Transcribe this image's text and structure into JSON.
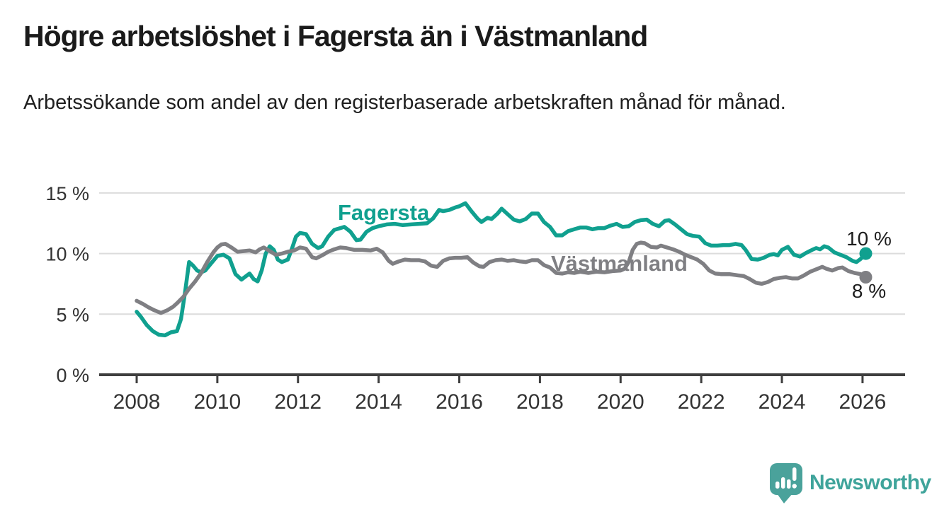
{
  "header": {
    "title": "Högre arbetslöshet i Fagersta än i Västmanland",
    "subtitle": "Arbetssökande som andel av den registerbaserade arbetskraften månad för månad."
  },
  "branding": {
    "logo_text": "Newsworthy",
    "logo_icon": "bar-chart-speech-bubble-icon",
    "logo_color": "#4aa29b"
  },
  "chart_data": {
    "type": "line",
    "unit": "%",
    "title": "Högre arbetslöshet i Fagersta än i Västmanland",
    "subtitle": "Arbetssökande som andel av den registerbaserade arbetskraften månad för månad.",
    "legend_position": "inline-labels",
    "grid": "horizontal",
    "style": {
      "gridline_color": "#dcdcdc",
      "axis_color": "#3e3e3e",
      "axis_text_color": "#333333"
    },
    "x_axis": {
      "min": 2007.1,
      "max": 2027.1,
      "ticks": [
        {
          "value": 2008,
          "label": "2008"
        },
        {
          "value": 2010,
          "label": "2010"
        },
        {
          "value": 2012,
          "label": "2012"
        },
        {
          "value": 2014,
          "label": "2014"
        },
        {
          "value": 2016,
          "label": "2016"
        },
        {
          "value": 2018,
          "label": "2018"
        },
        {
          "value": 2020,
          "label": "2020"
        },
        {
          "value": 2022,
          "label": "2022"
        },
        {
          "value": 2024,
          "label": "2024"
        },
        {
          "value": 2026,
          "label": "2026"
        }
      ]
    },
    "y_axis": {
      "min": 0,
      "max": 15,
      "ticks": [
        {
          "value": 0,
          "label": "0 %"
        },
        {
          "value": 5,
          "label": "5 %"
        },
        {
          "value": 10,
          "label": "10 %"
        },
        {
          "value": 15,
          "label": "15 %"
        }
      ]
    },
    "series": [
      {
        "id": "fagersta",
        "name": "Fagersta",
        "color": "#10a08f",
        "end_label": "10 %",
        "end_value": 10,
        "points": [
          [
            2008.0,
            5.2
          ],
          [
            2008.1,
            4.8
          ],
          [
            2008.25,
            4.1
          ],
          [
            2008.4,
            3.6
          ],
          [
            2008.55,
            3.3
          ],
          [
            2008.7,
            3.25
          ],
          [
            2008.85,
            3.5
          ],
          [
            2009.0,
            3.6
          ],
          [
            2009.1,
            4.6
          ],
          [
            2009.2,
            6.8
          ],
          [
            2009.3,
            9.3
          ],
          [
            2009.4,
            9.0
          ],
          [
            2009.5,
            8.6
          ],
          [
            2009.6,
            8.45
          ],
          [
            2009.7,
            8.6
          ],
          [
            2009.85,
            9.2
          ],
          [
            2010.0,
            9.8
          ],
          [
            2010.15,
            9.9
          ],
          [
            2010.3,
            9.6
          ],
          [
            2010.45,
            8.3
          ],
          [
            2010.6,
            7.85
          ],
          [
            2010.7,
            8.1
          ],
          [
            2010.8,
            8.35
          ],
          [
            2010.9,
            7.9
          ],
          [
            2011.0,
            7.7
          ],
          [
            2011.1,
            8.6
          ],
          [
            2011.2,
            10.0
          ],
          [
            2011.3,
            10.6
          ],
          [
            2011.4,
            10.3
          ],
          [
            2011.5,
            9.5
          ],
          [
            2011.6,
            9.3
          ],
          [
            2011.75,
            9.5
          ],
          [
            2011.85,
            10.4
          ],
          [
            2011.95,
            11.4
          ],
          [
            2012.05,
            11.7
          ],
          [
            2012.2,
            11.6
          ],
          [
            2012.35,
            10.8
          ],
          [
            2012.5,
            10.45
          ],
          [
            2012.6,
            10.6
          ],
          [
            2012.75,
            11.4
          ],
          [
            2012.9,
            11.95
          ],
          [
            2013.05,
            12.1
          ],
          [
            2013.15,
            12.2
          ],
          [
            2013.3,
            11.8
          ],
          [
            2013.45,
            11.1
          ],
          [
            2013.55,
            11.15
          ],
          [
            2013.7,
            11.8
          ],
          [
            2013.85,
            12.1
          ],
          [
            2014.0,
            12.25
          ],
          [
            2014.2,
            12.4
          ],
          [
            2014.4,
            12.45
          ],
          [
            2014.6,
            12.35
          ],
          [
            2014.8,
            12.4
          ],
          [
            2015.0,
            12.45
          ],
          [
            2015.2,
            12.5
          ],
          [
            2015.35,
            12.9
          ],
          [
            2015.5,
            13.6
          ],
          [
            2015.6,
            13.5
          ],
          [
            2015.75,
            13.6
          ],
          [
            2015.9,
            13.8
          ],
          [
            2016.0,
            13.9
          ],
          [
            2016.15,
            14.15
          ],
          [
            2016.3,
            13.5
          ],
          [
            2016.45,
            12.9
          ],
          [
            2016.55,
            12.6
          ],
          [
            2016.7,
            12.95
          ],
          [
            2016.8,
            12.85
          ],
          [
            2016.95,
            13.3
          ],
          [
            2017.05,
            13.7
          ],
          [
            2017.2,
            13.25
          ],
          [
            2017.35,
            12.8
          ],
          [
            2017.5,
            12.65
          ],
          [
            2017.65,
            12.85
          ],
          [
            2017.8,
            13.3
          ],
          [
            2017.95,
            13.3
          ],
          [
            2018.1,
            12.6
          ],
          [
            2018.25,
            12.2
          ],
          [
            2018.4,
            11.5
          ],
          [
            2018.55,
            11.5
          ],
          [
            2018.7,
            11.85
          ],
          [
            2018.85,
            12.0
          ],
          [
            2019.0,
            12.15
          ],
          [
            2019.15,
            12.15
          ],
          [
            2019.3,
            12.0
          ],
          [
            2019.45,
            12.1
          ],
          [
            2019.6,
            12.1
          ],
          [
            2019.75,
            12.3
          ],
          [
            2019.9,
            12.45
          ],
          [
            2020.05,
            12.2
          ],
          [
            2020.2,
            12.25
          ],
          [
            2020.35,
            12.6
          ],
          [
            2020.5,
            12.75
          ],
          [
            2020.65,
            12.8
          ],
          [
            2020.8,
            12.45
          ],
          [
            2020.95,
            12.25
          ],
          [
            2021.1,
            12.7
          ],
          [
            2021.2,
            12.75
          ],
          [
            2021.35,
            12.4
          ],
          [
            2021.5,
            12.0
          ],
          [
            2021.65,
            11.6
          ],
          [
            2021.8,
            11.45
          ],
          [
            2021.95,
            11.4
          ],
          [
            2022.1,
            10.85
          ],
          [
            2022.25,
            10.65
          ],
          [
            2022.4,
            10.65
          ],
          [
            2022.55,
            10.7
          ],
          [
            2022.7,
            10.7
          ],
          [
            2022.85,
            10.8
          ],
          [
            2023.0,
            10.7
          ],
          [
            2023.1,
            10.3
          ],
          [
            2023.25,
            9.55
          ],
          [
            2023.4,
            9.5
          ],
          [
            2023.55,
            9.65
          ],
          [
            2023.7,
            9.9
          ],
          [
            2023.8,
            9.95
          ],
          [
            2023.9,
            9.85
          ],
          [
            2024.0,
            10.3
          ],
          [
            2024.15,
            10.55
          ],
          [
            2024.3,
            9.9
          ],
          [
            2024.45,
            9.75
          ],
          [
            2024.6,
            10.05
          ],
          [
            2024.75,
            10.3
          ],
          [
            2024.85,
            10.45
          ],
          [
            2024.95,
            10.35
          ],
          [
            2025.05,
            10.6
          ],
          [
            2025.15,
            10.5
          ],
          [
            2025.3,
            10.1
          ],
          [
            2025.45,
            9.9
          ],
          [
            2025.6,
            9.7
          ],
          [
            2025.75,
            9.4
          ],
          [
            2025.85,
            9.3
          ],
          [
            2025.95,
            9.55
          ],
          [
            2026.08,
            10.0
          ]
        ]
      },
      {
        "id": "vastmanland",
        "name": "Västmanland",
        "color": "#7f7f83",
        "end_label": "8 %",
        "end_value": 8,
        "points": [
          [
            2008.0,
            6.1
          ],
          [
            2008.15,
            5.85
          ],
          [
            2008.3,
            5.55
          ],
          [
            2008.45,
            5.3
          ],
          [
            2008.6,
            5.1
          ],
          [
            2008.75,
            5.3
          ],
          [
            2008.9,
            5.6
          ],
          [
            2009.0,
            5.9
          ],
          [
            2009.15,
            6.4
          ],
          [
            2009.3,
            7.1
          ],
          [
            2009.45,
            7.7
          ],
          [
            2009.6,
            8.4
          ],
          [
            2009.75,
            9.3
          ],
          [
            2009.9,
            10.1
          ],
          [
            2010.0,
            10.5
          ],
          [
            2010.1,
            10.75
          ],
          [
            2010.2,
            10.8
          ],
          [
            2010.35,
            10.5
          ],
          [
            2010.5,
            10.15
          ],
          [
            2010.65,
            10.2
          ],
          [
            2010.8,
            10.25
          ],
          [
            2010.95,
            10.1
          ],
          [
            2011.05,
            10.35
          ],
          [
            2011.15,
            10.5
          ],
          [
            2011.3,
            10.2
          ],
          [
            2011.45,
            9.9
          ],
          [
            2011.6,
            10.0
          ],
          [
            2011.75,
            10.15
          ],
          [
            2011.9,
            10.25
          ],
          [
            2012.05,
            10.5
          ],
          [
            2012.2,
            10.4
          ],
          [
            2012.35,
            9.7
          ],
          [
            2012.45,
            9.6
          ],
          [
            2012.6,
            9.85
          ],
          [
            2012.75,
            10.15
          ],
          [
            2012.9,
            10.35
          ],
          [
            2013.05,
            10.5
          ],
          [
            2013.2,
            10.45
          ],
          [
            2013.4,
            10.3
          ],
          [
            2013.6,
            10.3
          ],
          [
            2013.8,
            10.25
          ],
          [
            2013.95,
            10.4
          ],
          [
            2014.1,
            10.1
          ],
          [
            2014.25,
            9.4
          ],
          [
            2014.35,
            9.15
          ],
          [
            2014.5,
            9.35
          ],
          [
            2014.65,
            9.5
          ],
          [
            2014.8,
            9.45
          ],
          [
            2015.0,
            9.45
          ],
          [
            2015.15,
            9.35
          ],
          [
            2015.3,
            9.0
          ],
          [
            2015.45,
            8.9
          ],
          [
            2015.6,
            9.4
          ],
          [
            2015.75,
            9.6
          ],
          [
            2015.9,
            9.65
          ],
          [
            2016.05,
            9.65
          ],
          [
            2016.2,
            9.7
          ],
          [
            2016.35,
            9.25
          ],
          [
            2016.5,
            8.95
          ],
          [
            2016.6,
            8.9
          ],
          [
            2016.75,
            9.3
          ],
          [
            2016.9,
            9.45
          ],
          [
            2017.05,
            9.5
          ],
          [
            2017.2,
            9.4
          ],
          [
            2017.35,
            9.45
          ],
          [
            2017.5,
            9.35
          ],
          [
            2017.65,
            9.3
          ],
          [
            2017.8,
            9.45
          ],
          [
            2017.95,
            9.45
          ],
          [
            2018.1,
            9.05
          ],
          [
            2018.25,
            8.85
          ],
          [
            2018.4,
            8.4
          ],
          [
            2018.55,
            8.35
          ],
          [
            2018.7,
            8.45
          ],
          [
            2018.85,
            8.4
          ],
          [
            2019.0,
            8.5
          ],
          [
            2019.2,
            8.4
          ],
          [
            2019.4,
            8.5
          ],
          [
            2019.6,
            8.45
          ],
          [
            2019.8,
            8.55
          ],
          [
            2020.0,
            8.6
          ],
          [
            2020.1,
            8.75
          ],
          [
            2020.2,
            9.3
          ],
          [
            2020.3,
            10.3
          ],
          [
            2020.4,
            10.8
          ],
          [
            2020.5,
            10.9
          ],
          [
            2020.6,
            10.85
          ],
          [
            2020.75,
            10.55
          ],
          [
            2020.9,
            10.5
          ],
          [
            2021.0,
            10.65
          ],
          [
            2021.15,
            10.5
          ],
          [
            2021.3,
            10.35
          ],
          [
            2021.45,
            10.15
          ],
          [
            2021.6,
            9.9
          ],
          [
            2021.75,
            9.7
          ],
          [
            2021.9,
            9.5
          ],
          [
            2022.05,
            9.15
          ],
          [
            2022.2,
            8.6
          ],
          [
            2022.35,
            8.35
          ],
          [
            2022.5,
            8.3
          ],
          [
            2022.7,
            8.3
          ],
          [
            2022.9,
            8.2
          ],
          [
            2023.05,
            8.15
          ],
          [
            2023.2,
            7.9
          ],
          [
            2023.35,
            7.6
          ],
          [
            2023.5,
            7.5
          ],
          [
            2023.65,
            7.65
          ],
          [
            2023.8,
            7.9
          ],
          [
            2023.95,
            8.0
          ],
          [
            2024.1,
            8.05
          ],
          [
            2024.25,
            7.95
          ],
          [
            2024.4,
            7.95
          ],
          [
            2024.55,
            8.2
          ],
          [
            2024.7,
            8.5
          ],
          [
            2024.85,
            8.7
          ],
          [
            2025.0,
            8.9
          ],
          [
            2025.1,
            8.75
          ],
          [
            2025.25,
            8.6
          ],
          [
            2025.4,
            8.8
          ],
          [
            2025.5,
            8.85
          ],
          [
            2025.65,
            8.55
          ],
          [
            2025.8,
            8.4
          ],
          [
            2025.95,
            8.3
          ],
          [
            2026.08,
            8.05
          ]
        ]
      }
    ]
  }
}
